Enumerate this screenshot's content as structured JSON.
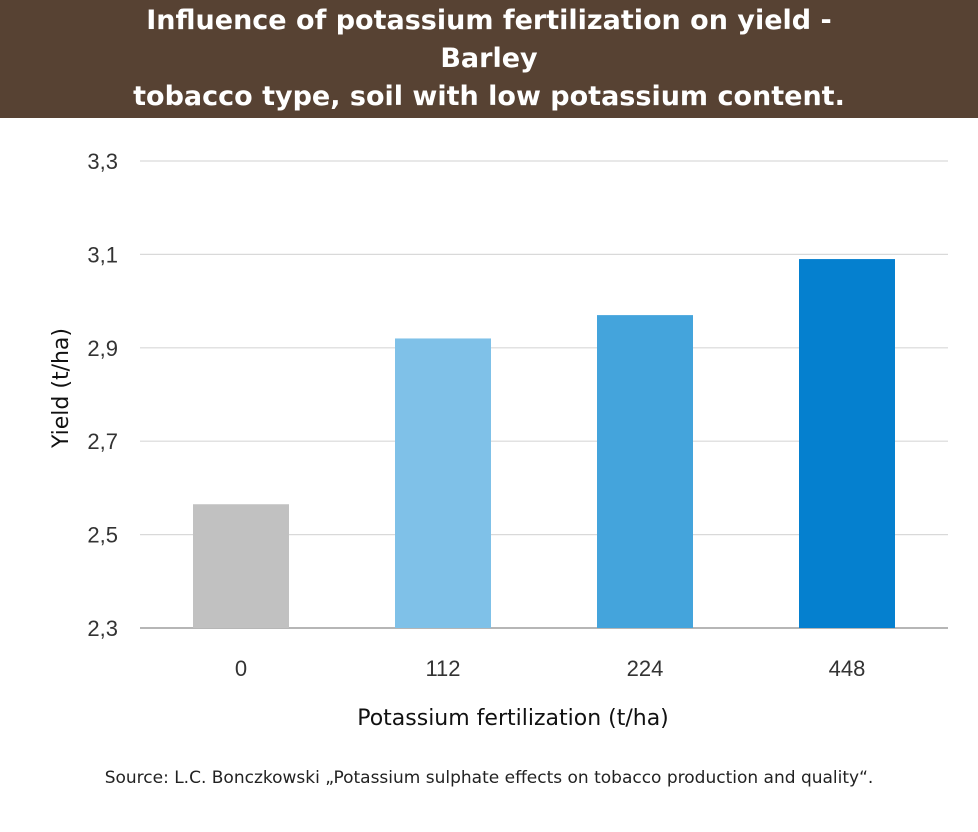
{
  "header": {
    "title_line1": "Influence of potassium fertilization on yield - Barley",
    "title_line2": "tobacco type, soil with low potassium content."
  },
  "chart_data": {
    "type": "bar",
    "title": "Influence of potassium fertilization on yield - Barley tobacco type, soil with low potassium content.",
    "categories": [
      "0",
      "112",
      "224",
      "448"
    ],
    "values": [
      2.565,
      2.92,
      2.97,
      3.09
    ],
    "bar_colors": [
      "#c1c1c1",
      "#7fc1e8",
      "#44a4dc",
      "#0580cf"
    ],
    "xlabel": "Potassium fertilization (t/ha)",
    "ylabel": "Yield (t/ha)",
    "ylim": [
      2.3,
      3.3
    ],
    "yticks": [
      "2,3",
      "2,5",
      "2,7",
      "2,9",
      "3,1",
      "3,3"
    ],
    "ytick_values": [
      2.3,
      2.5,
      2.7,
      2.9,
      3.1,
      3.3
    ],
    "grid": true,
    "legend": "none"
  },
  "source": "Source: L.C. Bonczkowski „Potassium sulphate effects on tobacco production and quality“."
}
